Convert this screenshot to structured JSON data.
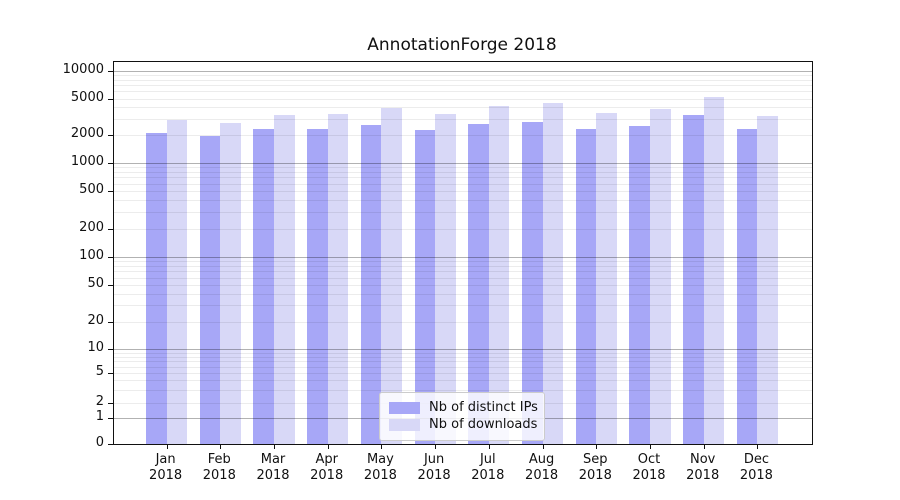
{
  "chart_data": {
    "type": "bar",
    "title": "AnnotationForge 2018",
    "categories": [
      "Jan",
      "Feb",
      "Mar",
      "Apr",
      "May",
      "Jun",
      "Jul",
      "Aug",
      "Sep",
      "Oct",
      "Nov",
      "Dec"
    ],
    "year": "2018",
    "series": [
      {
        "name": "Nb of distinct IPs",
        "color": "#a7a7f7",
        "values": [
          2100,
          1950,
          2300,
          2300,
          2550,
          2250,
          2650,
          2750,
          2300,
          2500,
          3350,
          2350
        ]
      },
      {
        "name": "Nb of downloads",
        "color": "#d8d8f7",
        "values": [
          2950,
          2700,
          3300,
          3400,
          3950,
          3400,
          4150,
          4500,
          3500,
          3850,
          5150,
          3250
        ]
      }
    ],
    "y_axis": {
      "scale": "symlog",
      "tick_values": [
        0,
        1,
        2,
        5,
        10,
        20,
        50,
        100,
        200,
        500,
        1000,
        2000,
        5000,
        10000
      ],
      "tick_labels": [
        "0",
        "1",
        "2",
        "5",
        "10",
        "20",
        "50",
        "100",
        "200",
        "500",
        "1000",
        "2000",
        "5000",
        "10000"
      ],
      "ylim": [
        0,
        11500
      ],
      "grid": "on",
      "major_grid_values": [
        1,
        10,
        100,
        1000,
        10000
      ]
    },
    "legend": {
      "position": "inside-bottom-center",
      "entries": [
        "Nb of distinct IPs",
        "Nb of downloads"
      ]
    }
  }
}
